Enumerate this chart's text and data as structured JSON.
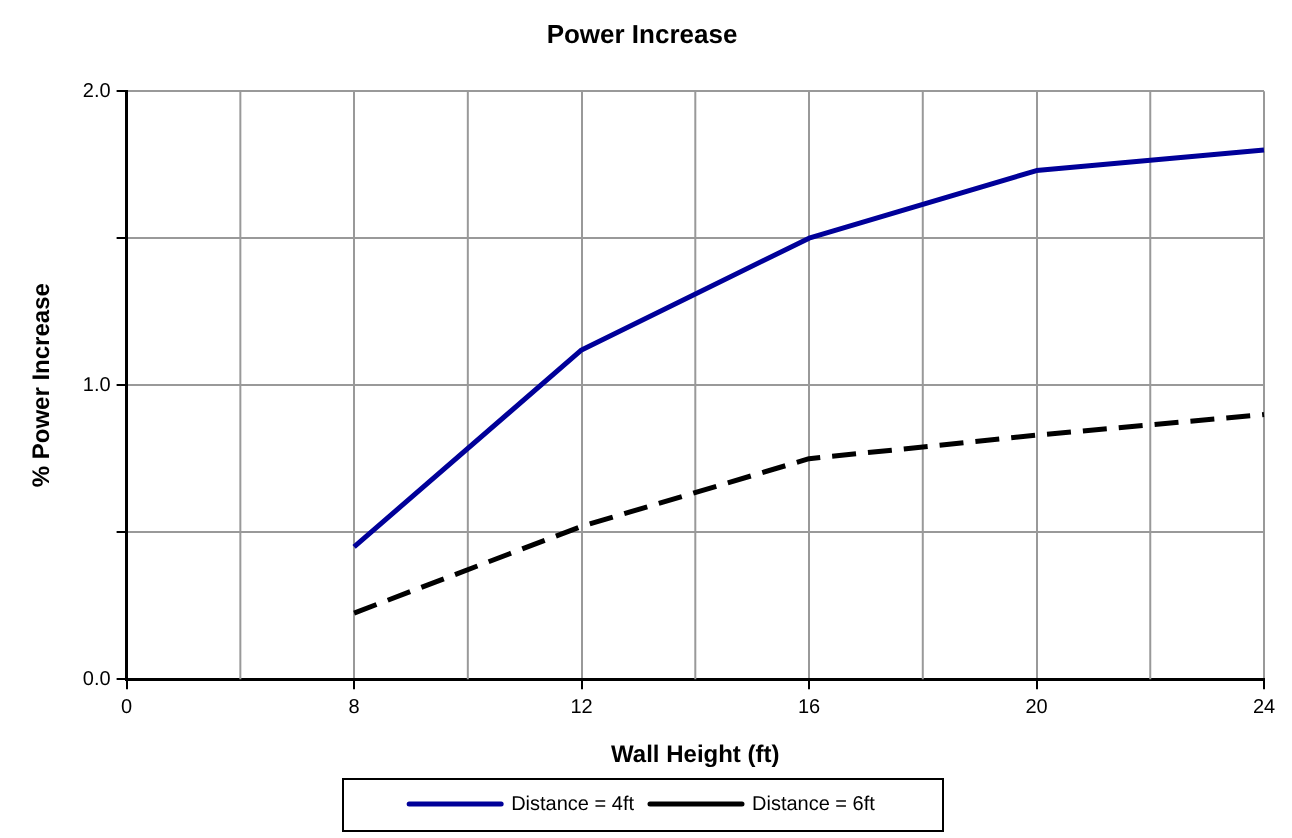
{
  "chart_data": {
    "type": "line",
    "title": "Power Increase",
    "xlabel": "Wall Height (ft)",
    "ylabel": "% Power Increase",
    "categories": [
      "0",
      "8",
      "12",
      "16",
      "20",
      "24"
    ],
    "series": [
      {
        "name": "Distance = 4ft",
        "color": "#000099",
        "line_style": "solid",
        "values": [
          null,
          0.45,
          1.12,
          1.5,
          1.73,
          1.8
        ]
      },
      {
        "name": "Distance = 6ft",
        "color": "#000000",
        "line_style": "dashed",
        "values": [
          null,
          0.225,
          0.52,
          0.75,
          0.83,
          0.9
        ]
      }
    ],
    "ylim": [
      0,
      2
    ],
    "yticks": [
      {
        "value": 0,
        "label": "0.0"
      },
      {
        "value": 0.5,
        "label": null
      },
      {
        "value": 1,
        "label": "1.0"
      },
      {
        "value": 1.5,
        "label": null
      },
      {
        "value": 2,
        "label": "2.0"
      }
    ],
    "grid": true,
    "legend": "bottom",
    "marker": "none"
  }
}
